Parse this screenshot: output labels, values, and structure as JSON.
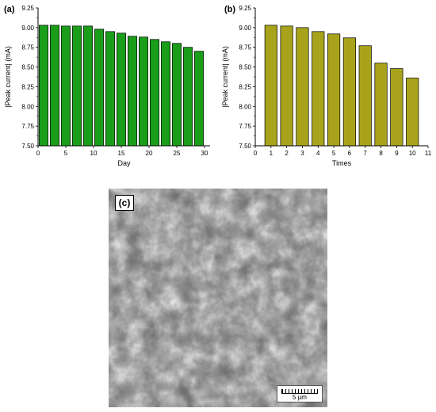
{
  "panels": {
    "a": "(a)",
    "b": "(b)",
    "c": "(c)"
  },
  "scale_bar": "5 µm",
  "chart_data": [
    {
      "type": "bar",
      "panel": "(a)",
      "xlabel": "Day",
      "ylabel": "|Peak current| (mA)",
      "x": [
        1,
        3,
        5,
        7,
        9,
        11,
        13,
        15,
        17,
        19,
        21,
        23,
        25,
        27,
        29
      ],
      "values": [
        9.03,
        9.03,
        9.02,
        9.02,
        9.02,
        8.98,
        8.95,
        8.93,
        8.89,
        8.88,
        8.85,
        8.82,
        8.8,
        8.75,
        8.7
      ],
      "xlim": [
        0,
        31
      ],
      "ylim": [
        7.5,
        9.25
      ],
      "xticks": [
        "0",
        "5",
        "10",
        "15",
        "20",
        "25",
        "30"
      ],
      "yticks": [
        "7.50",
        "7.75",
        "8.00",
        "8.25",
        "8.50",
        "8.75",
        "9.00",
        "9.25"
      ],
      "bar_color": "#1a9e1a"
    },
    {
      "type": "bar",
      "panel": "(b)",
      "xlabel": "Times",
      "ylabel": "|Peak current| (mA)",
      "x": [
        1,
        2,
        3,
        4,
        5,
        6,
        7,
        8,
        9,
        10
      ],
      "values": [
        9.03,
        9.02,
        9.0,
        8.95,
        8.92,
        8.87,
        8.77,
        8.55,
        8.48,
        8.36
      ],
      "xlim": [
        0,
        11
      ],
      "ylim": [
        7.5,
        9.25
      ],
      "xticks": [
        "0",
        "1",
        "2",
        "3",
        "4",
        "5",
        "6",
        "7",
        "8",
        "9",
        "10",
        "11"
      ],
      "yticks": [
        "7.50",
        "7.75",
        "8.00",
        "8.25",
        "8.50",
        "8.75",
        "9.00",
        "9.25"
      ],
      "bar_color": "#a8a31a"
    }
  ]
}
